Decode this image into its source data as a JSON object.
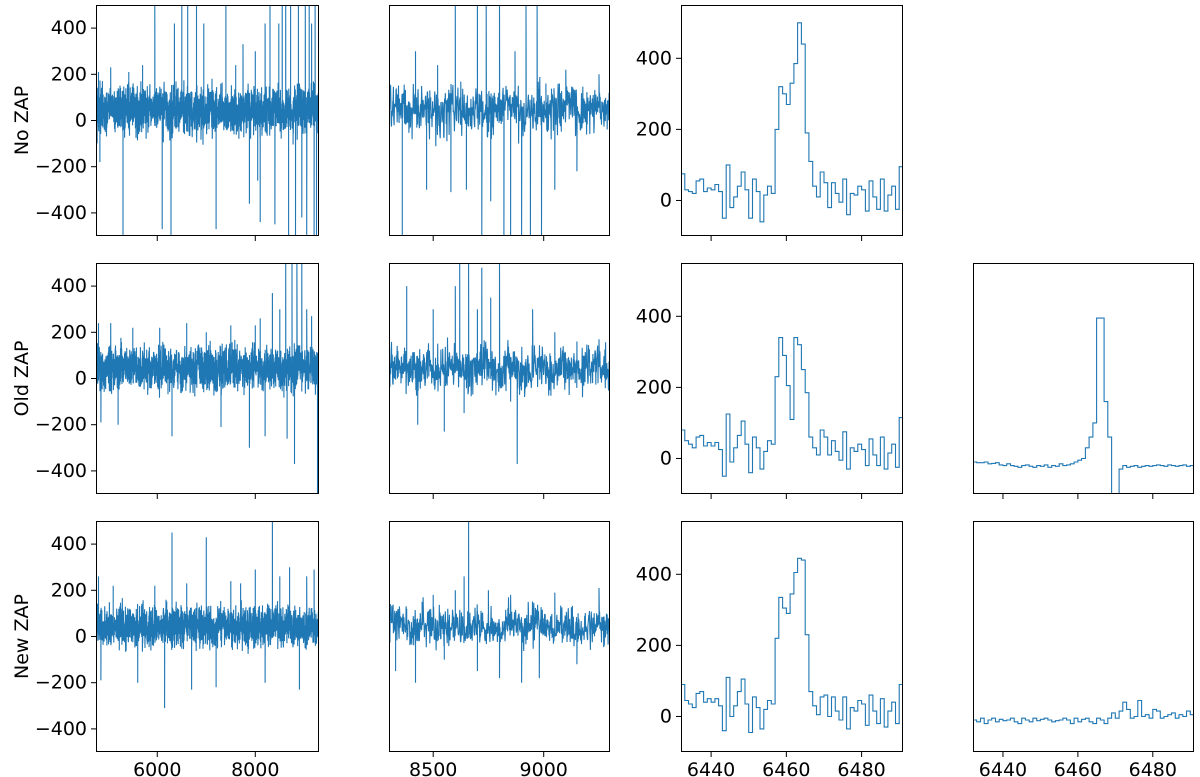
{
  "chart_data": {
    "type": "line",
    "rows": [
      {
        "label": "No ZAP",
        "key": "none"
      },
      {
        "label": "Old ZAP",
        "key": "old"
      },
      {
        "label": "New ZAP",
        "key": "new"
      }
    ],
    "columns": [
      {
        "key": "full",
        "xlim": [
          4750,
          9300
        ],
        "xticks": [
          6000,
          8000
        ],
        "ylim": [
          -500,
          500
        ],
        "yticks": [
          -400,
          -200,
          0,
          200,
          400
        ],
        "show_y_labels": true
      },
      {
        "key": "red",
        "xlim": [
          8300,
          9300
        ],
        "xticks": [
          8500,
          9000
        ],
        "ylim": [
          -500,
          500
        ],
        "yticks": [],
        "show_y_labels": false
      },
      {
        "key": "halpha",
        "xlim": [
          6432,
          6491
        ],
        "xticks": [
          6440,
          6460,
          6480
        ],
        "ylim": [
          -100,
          550
        ],
        "yticks": [
          0,
          200,
          400
        ],
        "show_y_labels": true
      },
      {
        "key": "residual",
        "xlim": [
          6432,
          6491
        ],
        "xticks": [
          6440,
          6460,
          6480
        ],
        "ylim": [
          -100,
          550
        ],
        "yticks": [],
        "show_y_labels": false
      }
    ],
    "panels_present": {
      "none": [
        "full",
        "red",
        "halpha"
      ],
      "old": [
        "full",
        "red",
        "halpha",
        "residual"
      ],
      "new": [
        "full",
        "red",
        "halpha",
        "residual"
      ]
    },
    "line_color": "#1f77b4",
    "step_x": [
      6432,
      6433,
      6434,
      6435,
      6436,
      6437,
      6438,
      6439,
      6440,
      6441,
      6442,
      6443,
      6444,
      6445,
      6446,
      6447,
      6448,
      6449,
      6450,
      6451,
      6452,
      6453,
      6454,
      6455,
      6456,
      6457,
      6458,
      6459,
      6460,
      6461,
      6462,
      6463,
      6464,
      6465,
      6466,
      6467,
      6468,
      6469,
      6470,
      6471,
      6472,
      6473,
      6474,
      6475,
      6476,
      6477,
      6478,
      6479,
      6480,
      6481,
      6482,
      6483,
      6484,
      6485,
      6486,
      6487,
      6488,
      6489,
      6490
    ],
    "halpha": {
      "none": [
        75,
        30,
        25,
        20,
        55,
        60,
        25,
        35,
        30,
        45,
        25,
        -50,
        100,
        -20,
        10,
        40,
        80,
        30,
        -50,
        60,
        25,
        -60,
        15,
        40,
        20,
        200,
        320,
        300,
        270,
        330,
        385,
        500,
        440,
        190,
        110,
        40,
        10,
        80,
        50,
        -20,
        50,
        20,
        -5,
        60,
        -40,
        20,
        15,
        40,
        30,
        -30,
        55,
        10,
        -25,
        60,
        -30,
        15,
        40,
        -25,
        95
      ],
      "old": [
        80,
        50,
        40,
        30,
        60,
        65,
        35,
        45,
        35,
        45,
        25,
        -50,
        125,
        -10,
        30,
        65,
        105,
        40,
        -40,
        60,
        30,
        -30,
        20,
        50,
        40,
        230,
        340,
        290,
        205,
        110,
        340,
        320,
        250,
        185,
        60,
        30,
        10,
        80,
        60,
        10,
        50,
        20,
        -5,
        75,
        -30,
        30,
        20,
        40,
        25,
        -20,
        55,
        10,
        -20,
        60,
        -30,
        15,
        40,
        -25,
        115
      ],
      "new": [
        90,
        45,
        35,
        25,
        65,
        70,
        40,
        50,
        40,
        50,
        30,
        -40,
        110,
        0,
        30,
        70,
        105,
        35,
        -45,
        55,
        25,
        -35,
        20,
        45,
        35,
        220,
        335,
        305,
        290,
        345,
        405,
        445,
        440,
        230,
        70,
        30,
        5,
        55,
        60,
        0,
        55,
        15,
        -10,
        55,
        -35,
        25,
        15,
        45,
        35,
        -25,
        60,
        15,
        -20,
        50,
        -30,
        15,
        40,
        -20,
        90
      ]
    },
    "residual": {
      "old": [
        -10,
        -12,
        -12,
        -10,
        -15,
        -14,
        -12,
        -18,
        -20,
        -15,
        -20,
        -22,
        -25,
        -20,
        -18,
        -22,
        -25,
        -20,
        -22,
        -18,
        -25,
        -20,
        -22,
        -15,
        -20,
        -18,
        -15,
        -10,
        -5,
        0,
        30,
        60,
        100,
        395,
        395,
        160,
        60,
        -200,
        -220,
        -30,
        -20,
        -25,
        -22,
        -20,
        -25,
        -22,
        -20,
        -22,
        -20,
        -18,
        -20,
        -22,
        -18,
        -20,
        -22,
        -20,
        -18,
        -22,
        -20
      ],
      "new": [
        -10,
        -15,
        -5,
        -20,
        -10,
        -5,
        -15,
        -8,
        -12,
        -10,
        -5,
        -15,
        -20,
        -5,
        -10,
        -15,
        -5,
        -12,
        -8,
        -5,
        -10,
        -15,
        -12,
        -10,
        -5,
        -10,
        -20,
        -5,
        -15,
        -8,
        -5,
        -15,
        -20,
        -5,
        -10,
        -20,
        -5,
        10,
        -5,
        15,
        40,
        20,
        -5,
        0,
        45,
        0,
        5,
        -5,
        20,
        15,
        -5,
        0,
        5,
        10,
        -5,
        5,
        0,
        15,
        5
      ]
    },
    "spikes": {
      "none": {
        "full": [
          [
            4800,
            210
          ],
          [
            4830,
            -180
          ],
          [
            5050,
            230
          ],
          [
            5300,
            -500
          ],
          [
            5420,
            210
          ],
          [
            5700,
            240
          ],
          [
            5950,
            500
          ],
          [
            6100,
            -470
          ],
          [
            6280,
            -500
          ],
          [
            6350,
            420
          ],
          [
            6500,
            500
          ],
          [
            6620,
            500
          ],
          [
            6800,
            500
          ],
          [
            6950,
            420
          ],
          [
            7200,
            -470
          ],
          [
            7400,
            500
          ],
          [
            7600,
            240
          ],
          [
            7750,
            330
          ],
          [
            7880,
            -360
          ],
          [
            8000,
            300
          ],
          [
            8050,
            -260
          ],
          [
            8100,
            -440
          ],
          [
            8200,
            420
          ],
          [
            8300,
            500
          ],
          [
            8400,
            -450
          ],
          [
            8480,
            420
          ],
          [
            8550,
            500
          ],
          [
            8620,
            500
          ],
          [
            8680,
            -500
          ],
          [
            8720,
            500
          ],
          [
            8820,
            -500
          ],
          [
            8880,
            500
          ],
          [
            8950,
            -420
          ],
          [
            9020,
            500
          ],
          [
            9050,
            -500
          ],
          [
            9100,
            500
          ],
          [
            9150,
            420
          ],
          [
            9200,
            -500
          ],
          [
            9220,
            500
          ],
          [
            9250,
            -500
          ]
        ],
        "red": [
          [
            8360,
            -500
          ],
          [
            8420,
            300
          ],
          [
            8470,
            -300
          ],
          [
            8520,
            240
          ],
          [
            8580,
            -310
          ],
          [
            8600,
            500
          ],
          [
            8650,
            -300
          ],
          [
            8700,
            500
          ],
          [
            8720,
            -500
          ],
          [
            8740,
            500
          ],
          [
            8760,
            -350
          ],
          [
            8800,
            500
          ],
          [
            8820,
            -500
          ],
          [
            8850,
            -500
          ],
          [
            8870,
            300
          ],
          [
            8900,
            -500
          ],
          [
            8920,
            500
          ],
          [
            8940,
            -500
          ],
          [
            8970,
            500
          ],
          [
            8990,
            -500
          ],
          [
            9010,
            160
          ],
          [
            9050,
            -300
          ],
          [
            9100,
            220
          ],
          [
            9150,
            -220
          ],
          [
            9250,
            200
          ]
        ]
      },
      "old": {
        "full": [
          [
            4800,
            240
          ],
          [
            4850,
            -190
          ],
          [
            5050,
            240
          ],
          [
            5200,
            -200
          ],
          [
            5500,
            220
          ],
          [
            6050,
            220
          ],
          [
            6300,
            -250
          ],
          [
            6600,
            240
          ],
          [
            7000,
            200
          ],
          [
            7300,
            -210
          ],
          [
            7500,
            230
          ],
          [
            7880,
            -300
          ],
          [
            8000,
            230
          ],
          [
            8100,
            260
          ],
          [
            8200,
            -250
          ],
          [
            8350,
            370
          ],
          [
            8500,
            300
          ],
          [
            8620,
            500
          ],
          [
            8650,
            -260
          ],
          [
            8750,
            500
          ],
          [
            8800,
            -370
          ],
          [
            8850,
            500
          ],
          [
            8950,
            500
          ],
          [
            9050,
            300
          ],
          [
            9150,
            270
          ],
          [
            9270,
            -500
          ]
        ],
        "red": [
          [
            8380,
            400
          ],
          [
            8430,
            -200
          ],
          [
            8500,
            300
          ],
          [
            8550,
            -230
          ],
          [
            8600,
            400
          ],
          [
            8620,
            500
          ],
          [
            8640,
            -150
          ],
          [
            8660,
            500
          ],
          [
            8700,
            300
          ],
          [
            8720,
            480
          ],
          [
            8760,
            350
          ],
          [
            8800,
            500
          ],
          [
            8850,
            -100
          ],
          [
            8880,
            -370
          ],
          [
            8950,
            300
          ],
          [
            9050,
            200
          ],
          [
            9150,
            160
          ],
          [
            9250,
            170
          ]
        ]
      },
      "new": {
        "full": [
          [
            4800,
            260
          ],
          [
            4850,
            -190
          ],
          [
            5100,
            220
          ],
          [
            5600,
            -200
          ],
          [
            5950,
            220
          ],
          [
            6150,
            -310
          ],
          [
            6300,
            450
          ],
          [
            6600,
            230
          ],
          [
            6700,
            -230
          ],
          [
            7000,
            430
          ],
          [
            7200,
            -220
          ],
          [
            7500,
            240
          ],
          [
            7700,
            230
          ],
          [
            8000,
            290
          ],
          [
            8200,
            -200
          ],
          [
            8350,
            500
          ],
          [
            8500,
            260
          ],
          [
            8700,
            300
          ],
          [
            8900,
            -230
          ],
          [
            9050,
            260
          ],
          [
            9200,
            290
          ]
        ],
        "red": [
          [
            8330,
            -150
          ],
          [
            8380,
            120
          ],
          [
            8420,
            -200
          ],
          [
            8450,
            150
          ],
          [
            8500,
            180
          ],
          [
            8550,
            -100
          ],
          [
            8600,
            200
          ],
          [
            8640,
            260
          ],
          [
            8660,
            500
          ],
          [
            8700,
            -150
          ],
          [
            8750,
            200
          ],
          [
            8800,
            -180
          ],
          [
            8850,
            180
          ],
          [
            8900,
            -200
          ],
          [
            8930,
            150
          ],
          [
            8980,
            -180
          ],
          [
            9050,
            190
          ],
          [
            9150,
            -120
          ],
          [
            9250,
            210
          ]
        ]
      }
    },
    "band_spread": {
      "none": {
        "full": 90,
        "red": 90
      },
      "old": {
        "full": 80,
        "red": 80
      },
      "new": {
        "full": 75,
        "red": 75
      }
    }
  }
}
